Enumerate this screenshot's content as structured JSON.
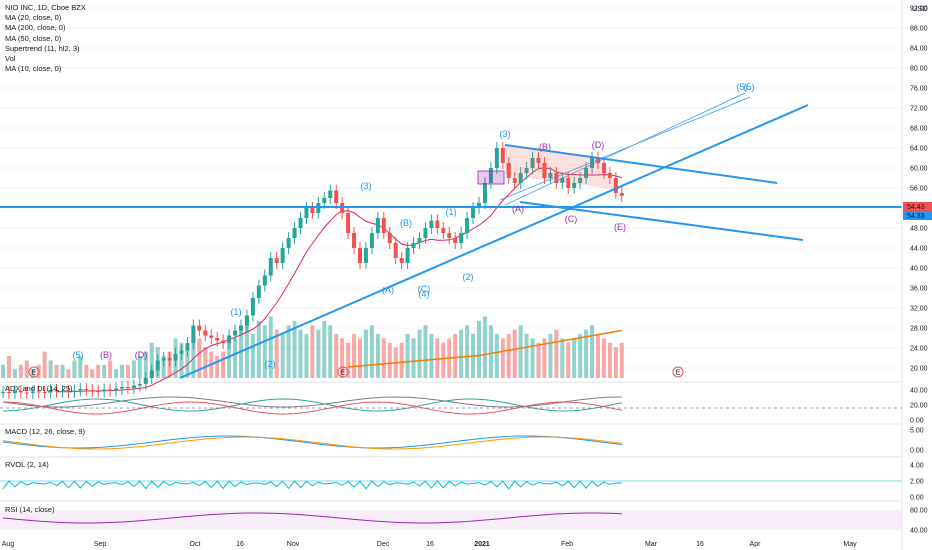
{
  "legend": {
    "title": "NIO INC, 1D, Cboe BZX",
    "lines": [
      "MA (20, close, 0)",
      "MA (200, close, 0)",
      "MA (50, close, 0)",
      "Supertrend (11, hl2, 3)",
      "Vol",
      "MA (10, close, 0)"
    ]
  },
  "currency": "USD",
  "panels": {
    "adx": "ADX and DI (14, 25)",
    "macd": "MACD (12, 26, close, 9)",
    "rvol": "RVOL (2, 14)",
    "rsi": "RSI (14, close)"
  },
  "price_labels": {
    "current": "54.43",
    "second": "54.33"
  },
  "colors": {
    "up": "#26a69a",
    "down": "#ef5350",
    "trend": "#2196f3",
    "ma200": "#f57c00",
    "purple": "#9c27b0"
  },
  "chart_data": {
    "type": "candlestick",
    "y_ticks": [
      "92.00",
      "88.00",
      "84.00",
      "80.00",
      "76.00",
      "72.00",
      "68.00",
      "64.00",
      "60.00",
      "56.00",
      "52.00",
      "48.00",
      "44.00",
      "40.00",
      "36.00",
      "32.00",
      "28.00",
      "24.00",
      "20.00"
    ],
    "adx_ticks": [
      "40.00",
      "20.00",
      "0.00"
    ],
    "macd_ticks": [
      "5.00",
      "0.00"
    ],
    "rvol_ticks": [
      "4.00",
      "2.00",
      "0.00"
    ],
    "rsi_ticks": [
      "80.00",
      "40.00"
    ],
    "x_ticks": [
      "Aug",
      "Sep",
      "Oct",
      "16",
      "Nov",
      "Dec",
      "16",
      "2021",
      "Feb",
      "Mar",
      "16",
      "Apr",
      "May"
    ],
    "closes": [
      15.2,
      15.0,
      15.4,
      15.1,
      15.0,
      15.3,
      15.2,
      15.1,
      15.6,
      15.3,
      15.4,
      15.2,
      15.5,
      15.8,
      15.6,
      15.4,
      15.3,
      15.7,
      15.5,
      15.9,
      16.2,
      16.0,
      16.5,
      16.8,
      18.0,
      19.5,
      21.5,
      22.0,
      21.5,
      22.8,
      23.5,
      25.0,
      28.5,
      27.5,
      26.5,
      26.0,
      25.5,
      25.0,
      26.5,
      27.5,
      28.5,
      30.5,
      34.0,
      36.5,
      38.5,
      42.0,
      41.0,
      44.0,
      46.0,
      48.0,
      50.0,
      52.0,
      51.0,
      53.0,
      54.0,
      55.5,
      53.0,
      51.0,
      47.0,
      44.0,
      41.0,
      44.0,
      47.0,
      50.0,
      47.0,
      45.0,
      42.0,
      41.0,
      44.0,
      45.0,
      46.0,
      48.0,
      49.5,
      48.0,
      47.0,
      46.0,
      45.0,
      47.0,
      50.0,
      52.0,
      53.0,
      57.0,
      60.0,
      64.0,
      61.0,
      58.0,
      57.0,
      59.0,
      60.0,
      62.0,
      61.0,
      58.0,
      59.0,
      57.0,
      58.0,
      56.0,
      57.0,
      58.0,
      60.0,
      62.0,
      61.0,
      59.0,
      58.0,
      55.0,
      54.43
    ],
    "volumes": [
      3,
      5,
      2,
      3,
      4,
      2,
      3,
      6,
      4,
      3,
      3,
      2,
      4,
      5,
      3,
      2,
      3,
      3,
      4,
      2,
      3,
      3,
      4,
      5,
      6,
      8,
      7,
      5,
      6,
      9,
      8,
      7,
      10,
      9,
      7,
      6,
      5,
      6,
      8,
      9,
      11,
      12,
      10,
      13,
      12,
      14,
      11,
      10,
      12,
      13,
      11,
      10,
      12,
      11,
      13,
      12,
      10,
      9,
      8,
      10,
      9,
      11,
      12,
      10,
      9,
      8,
      7,
      8,
      10,
      9,
      11,
      12,
      10,
      9,
      8,
      9,
      10,
      11,
      12,
      10,
      13,
      14,
      12,
      10,
      9,
      10,
      11,
      12,
      10,
      9,
      8,
      9,
      10,
      11,
      9,
      8,
      9,
      10,
      11,
      12,
      10,
      9,
      8,
      7,
      8
    ],
    "ma200": [
      {
        "i": 58,
        "v": 20.2
      },
      {
        "i": 80,
        "v": 22.5
      },
      {
        "i": 104,
        "v": 27.5
      }
    ],
    "annotations": [
      "(5)",
      "(B)",
      "(D)",
      "(1)",
      "(2)",
      "(3)",
      "(A)",
      "(B)",
      "(C)",
      "(4)",
      "(1)",
      "(2)",
      "(3)",
      "(A)",
      "(B)",
      "(C)",
      "(D)",
      "(E)",
      "(5)",
      "(5)"
    ]
  }
}
